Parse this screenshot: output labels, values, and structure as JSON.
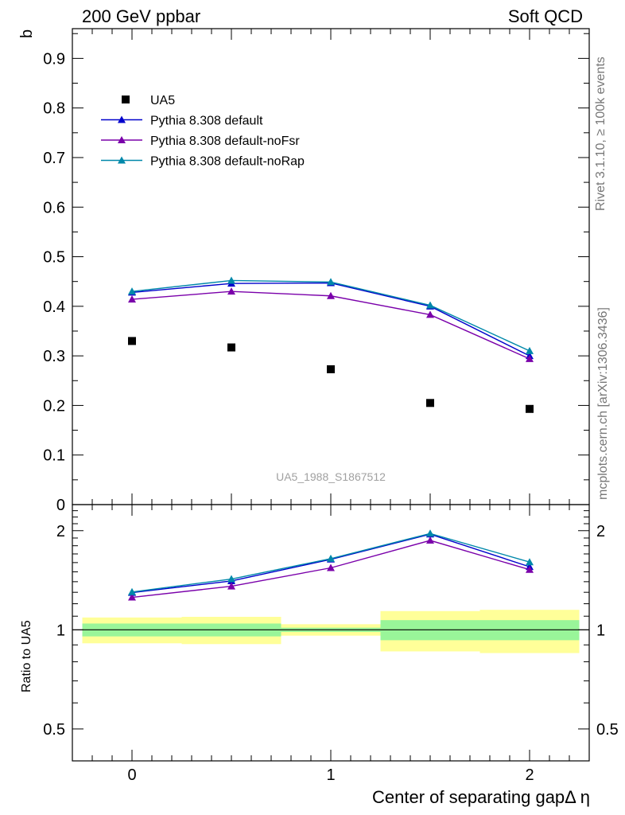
{
  "header": {
    "left": "200 GeV ppbar",
    "right": "Soft QCD"
  },
  "side_labels": {
    "rivet": "Rivet 3.1.10, ≥ 100k events",
    "mcplots": "mcplots.cern.ch [arXiv:1306.3436]"
  },
  "chart_data": [
    {
      "type": "line",
      "panel": "main",
      "ylabel": "b",
      "ylim": [
        0,
        0.96
      ],
      "xlim": [
        -0.3,
        2.3
      ],
      "y_ticks": [
        "0",
        "0.1",
        "0.2",
        "0.3",
        "0.4",
        "0.5",
        "0.6",
        "0.7",
        "0.8",
        "0.9"
      ],
      "watermark": "UA5_1988_S1867512",
      "legend_position": "top-left",
      "x": [
        0,
        0.5,
        1,
        1.5,
        2
      ],
      "data": {
        "name": "UA5",
        "color": "#000000",
        "y": [
          0.33,
          0.317,
          0.273,
          0.205,
          0.193
        ]
      },
      "series": [
        {
          "name": "Pythia 8.308 default",
          "color": "#0000cc",
          "y": [
            0.428,
            0.446,
            0.447,
            0.4,
            0.3
          ]
        },
        {
          "name": "Pythia 8.308 default-noFsr",
          "color": "#7a00aa",
          "y": [
            0.414,
            0.43,
            0.421,
            0.383,
            0.294
          ]
        },
        {
          "name": "Pythia 8.308 default-noRap",
          "color": "#0088aa",
          "y": [
            0.43,
            0.452,
            0.449,
            0.402,
            0.31
          ]
        }
      ]
    },
    {
      "type": "line",
      "panel": "ratio",
      "ylabel": "Ratio to UA5",
      "xlabel": "Center of separating gapΔ η",
      "ylog": true,
      "ylim": [
        0.4,
        2.4
      ],
      "y_ticks": [
        {
          "v": 0.5,
          "label": "0.5"
        },
        {
          "v": 1,
          "label": "1"
        },
        {
          "v": 2,
          "label": "2"
        }
      ],
      "x_ticks": [
        "0",
        "1",
        "2"
      ],
      "x": [
        0,
        0.5,
        1,
        1.5,
        2
      ],
      "bands": [
        {
          "x0": -0.25,
          "x1": 0.25,
          "stat": [
            0.955,
            1.045
          ],
          "total": [
            0.91,
            1.09
          ]
        },
        {
          "x0": 0.25,
          "x1": 0.75,
          "stat": [
            0.955,
            1.045
          ],
          "total": [
            0.905,
            1.095
          ]
        },
        {
          "x0": 0.75,
          "x1": 1.25,
          "stat": [
            0.985,
            1.015
          ],
          "total": [
            0.96,
            1.04
          ]
        },
        {
          "x0": 1.25,
          "x1": 1.75,
          "stat": [
            0.93,
            1.07
          ],
          "total": [
            0.86,
            1.14
          ]
        },
        {
          "x0": 1.75,
          "x1": 2.25,
          "stat": [
            0.93,
            1.07
          ],
          "total": [
            0.85,
            1.15
          ]
        }
      ],
      "series": [
        {
          "name": "Pythia 8.308 default",
          "color": "#0000cc",
          "y": [
            1.297,
            1.407,
            1.637,
            1.951,
            1.554
          ]
        },
        {
          "name": "Pythia 8.308 default-noFsr",
          "color": "#7a00aa",
          "y": [
            1.255,
            1.356,
            1.542,
            1.868,
            1.523
          ]
        },
        {
          "name": "Pythia 8.308 default-noRap",
          "color": "#0088aa",
          "y": [
            1.303,
            1.426,
            1.645,
            1.961,
            1.606
          ]
        }
      ]
    }
  ]
}
